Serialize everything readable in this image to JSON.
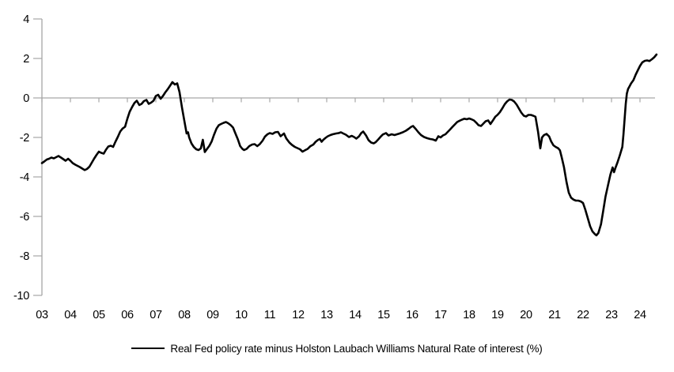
{
  "chart_data": {
    "type": "line",
    "title": "",
    "legend": "Real Fed policy rate minus Holston Laubach Williams Natural Rate of interest (%)",
    "legend_position": "bottom-center",
    "xlabel": "",
    "ylabel": "",
    "xlim": [
      2003,
      2024.56
    ],
    "ylim": [
      -10,
      4
    ],
    "grid": "zero-line-only",
    "axis_color": "#a6a6a6",
    "line_color": "#000000",
    "label_color": "#000000",
    "y_ticks": [
      4,
      2,
      0,
      -2,
      -4,
      -6,
      -8,
      -10
    ],
    "y_tick_labels": [
      "4",
      "2",
      "0",
      "-2",
      "-4",
      "-6",
      "-8",
      "-10"
    ],
    "x_tick_years": [
      2003,
      2004,
      2005,
      2006,
      2007,
      2008,
      2009,
      2010,
      2011,
      2012,
      2013,
      2014,
      2015,
      2016,
      2017,
      2018,
      2019,
      2020,
      2021,
      2022,
      2023,
      2024
    ],
    "x_tick_labels": [
      "03",
      "04",
      "05",
      "06",
      "07",
      "08",
      "09",
      "10",
      "11",
      "12",
      "13",
      "14",
      "15",
      "16",
      "17",
      "18",
      "19",
      "20",
      "21",
      "22",
      "23",
      "24"
    ],
    "series": [
      {
        "name": "Real Fed policy rate minus Holston Laubach Williams Natural Rate of interest (%)",
        "color": "#000000",
        "points": [
          [
            2003.0,
            -3.3
          ],
          [
            2003.08,
            -3.22
          ],
          [
            2003.17,
            -3.12
          ],
          [
            2003.25,
            -3.08
          ],
          [
            2003.33,
            -3.02
          ],
          [
            2003.42,
            -3.06
          ],
          [
            2003.5,
            -3.0
          ],
          [
            2003.58,
            -2.94
          ],
          [
            2003.67,
            -3.02
          ],
          [
            2003.75,
            -3.1
          ],
          [
            2003.83,
            -3.18
          ],
          [
            2003.92,
            -3.08
          ],
          [
            2004.0,
            -3.18
          ],
          [
            2004.08,
            -3.3
          ],
          [
            2004.17,
            -3.38
          ],
          [
            2004.25,
            -3.44
          ],
          [
            2004.33,
            -3.5
          ],
          [
            2004.42,
            -3.58
          ],
          [
            2004.5,
            -3.65
          ],
          [
            2004.58,
            -3.6
          ],
          [
            2004.67,
            -3.48
          ],
          [
            2004.75,
            -3.28
          ],
          [
            2004.83,
            -3.08
          ],
          [
            2004.92,
            -2.88
          ],
          [
            2005.0,
            -2.72
          ],
          [
            2005.08,
            -2.78
          ],
          [
            2005.17,
            -2.82
          ],
          [
            2005.25,
            -2.62
          ],
          [
            2005.33,
            -2.46
          ],
          [
            2005.42,
            -2.42
          ],
          [
            2005.5,
            -2.48
          ],
          [
            2005.58,
            -2.22
          ],
          [
            2005.67,
            -1.96
          ],
          [
            2005.75,
            -1.7
          ],
          [
            2005.83,
            -1.55
          ],
          [
            2005.92,
            -1.46
          ],
          [
            2006.0,
            -1.05
          ],
          [
            2006.08,
            -0.7
          ],
          [
            2006.17,
            -0.45
          ],
          [
            2006.25,
            -0.25
          ],
          [
            2006.33,
            -0.14
          ],
          [
            2006.42,
            -0.36
          ],
          [
            2006.5,
            -0.3
          ],
          [
            2006.58,
            -0.16
          ],
          [
            2006.67,
            -0.1
          ],
          [
            2006.75,
            -0.3
          ],
          [
            2006.83,
            -0.24
          ],
          [
            2006.92,
            -0.14
          ],
          [
            2007.0,
            0.1
          ],
          [
            2007.08,
            0.16
          ],
          [
            2007.17,
            -0.04
          ],
          [
            2007.25,
            0.1
          ],
          [
            2007.33,
            0.28
          ],
          [
            2007.42,
            0.45
          ],
          [
            2007.5,
            0.62
          ],
          [
            2007.58,
            0.8
          ],
          [
            2007.67,
            0.68
          ],
          [
            2007.75,
            0.74
          ],
          [
            2007.83,
            0.3
          ],
          [
            2007.92,
            -0.5
          ],
          [
            2008.0,
            -1.15
          ],
          [
            2008.08,
            -1.8
          ],
          [
            2008.13,
            -1.74
          ],
          [
            2008.17,
            -2.0
          ],
          [
            2008.25,
            -2.3
          ],
          [
            2008.33,
            -2.48
          ],
          [
            2008.42,
            -2.6
          ],
          [
            2008.5,
            -2.64
          ],
          [
            2008.58,
            -2.55
          ],
          [
            2008.65,
            -2.12
          ],
          [
            2008.72,
            -2.74
          ],
          [
            2008.79,
            -2.6
          ],
          [
            2008.88,
            -2.42
          ],
          [
            2008.96,
            -2.2
          ],
          [
            2009.04,
            -1.88
          ],
          [
            2009.13,
            -1.55
          ],
          [
            2009.21,
            -1.38
          ],
          [
            2009.29,
            -1.32
          ],
          [
            2009.38,
            -1.26
          ],
          [
            2009.46,
            -1.22
          ],
          [
            2009.54,
            -1.28
          ],
          [
            2009.63,
            -1.38
          ],
          [
            2009.71,
            -1.5
          ],
          [
            2009.79,
            -1.78
          ],
          [
            2009.88,
            -2.1
          ],
          [
            2009.96,
            -2.44
          ],
          [
            2010.04,
            -2.58
          ],
          [
            2010.1,
            -2.64
          ],
          [
            2010.19,
            -2.58
          ],
          [
            2010.28,
            -2.44
          ],
          [
            2010.38,
            -2.36
          ],
          [
            2010.47,
            -2.34
          ],
          [
            2010.56,
            -2.44
          ],
          [
            2010.65,
            -2.34
          ],
          [
            2010.75,
            -2.16
          ],
          [
            2010.83,
            -1.96
          ],
          [
            2010.92,
            -1.84
          ],
          [
            2011.0,
            -1.78
          ],
          [
            2011.1,
            -1.82
          ],
          [
            2011.19,
            -1.74
          ],
          [
            2011.29,
            -1.72
          ],
          [
            2011.38,
            -1.94
          ],
          [
            2011.5,
            -1.8
          ],
          [
            2011.58,
            -2.05
          ],
          [
            2011.69,
            -2.26
          ],
          [
            2011.78,
            -2.38
          ],
          [
            2011.88,
            -2.48
          ],
          [
            2011.97,
            -2.54
          ],
          [
            2012.06,
            -2.6
          ],
          [
            2012.15,
            -2.72
          ],
          [
            2012.25,
            -2.64
          ],
          [
            2012.33,
            -2.58
          ],
          [
            2012.42,
            -2.45
          ],
          [
            2012.53,
            -2.36
          ],
          [
            2012.61,
            -2.22
          ],
          [
            2012.7,
            -2.12
          ],
          [
            2012.76,
            -2.08
          ],
          [
            2012.82,
            -2.22
          ],
          [
            2012.88,
            -2.12
          ],
          [
            2012.96,
            -2.02
          ],
          [
            2013.04,
            -1.94
          ],
          [
            2013.13,
            -1.88
          ],
          [
            2013.21,
            -1.84
          ],
          [
            2013.33,
            -1.8
          ],
          [
            2013.42,
            -1.78
          ],
          [
            2013.5,
            -1.74
          ],
          [
            2013.58,
            -1.8
          ],
          [
            2013.67,
            -1.86
          ],
          [
            2013.78,
            -1.98
          ],
          [
            2013.88,
            -1.92
          ],
          [
            2013.96,
            -1.98
          ],
          [
            2014.04,
            -2.06
          ],
          [
            2014.13,
            -1.95
          ],
          [
            2014.21,
            -1.78
          ],
          [
            2014.28,
            -1.7
          ],
          [
            2014.38,
            -1.9
          ],
          [
            2014.47,
            -2.14
          ],
          [
            2014.56,
            -2.26
          ],
          [
            2014.65,
            -2.3
          ],
          [
            2014.72,
            -2.24
          ],
          [
            2014.81,
            -2.1
          ],
          [
            2014.9,
            -1.95
          ],
          [
            2014.97,
            -1.85
          ],
          [
            2015.08,
            -1.78
          ],
          [
            2015.17,
            -1.9
          ],
          [
            2015.28,
            -1.84
          ],
          [
            2015.38,
            -1.88
          ],
          [
            2015.47,
            -1.84
          ],
          [
            2015.56,
            -1.8
          ],
          [
            2015.67,
            -1.74
          ],
          [
            2015.78,
            -1.66
          ],
          [
            2015.88,
            -1.56
          ],
          [
            2015.97,
            -1.46
          ],
          [
            2016.03,
            -1.42
          ],
          [
            2016.13,
            -1.58
          ],
          [
            2016.22,
            -1.74
          ],
          [
            2016.31,
            -1.88
          ],
          [
            2016.42,
            -1.98
          ],
          [
            2016.53,
            -2.04
          ],
          [
            2016.63,
            -2.08
          ],
          [
            2016.72,
            -2.1
          ],
          [
            2016.83,
            -2.16
          ],
          [
            2016.92,
            -1.94
          ],
          [
            2017.0,
            -2.0
          ],
          [
            2017.08,
            -1.9
          ],
          [
            2017.17,
            -1.84
          ],
          [
            2017.25,
            -1.72
          ],
          [
            2017.33,
            -1.6
          ],
          [
            2017.42,
            -1.46
          ],
          [
            2017.5,
            -1.34
          ],
          [
            2017.58,
            -1.22
          ],
          [
            2017.67,
            -1.15
          ],
          [
            2017.75,
            -1.1
          ],
          [
            2017.83,
            -1.05
          ],
          [
            2017.92,
            -1.08
          ],
          [
            2018.0,
            -1.04
          ],
          [
            2018.08,
            -1.08
          ],
          [
            2018.17,
            -1.14
          ],
          [
            2018.25,
            -1.25
          ],
          [
            2018.33,
            -1.38
          ],
          [
            2018.42,
            -1.42
          ],
          [
            2018.5,
            -1.3
          ],
          [
            2018.58,
            -1.18
          ],
          [
            2018.67,
            -1.14
          ],
          [
            2018.75,
            -1.32
          ],
          [
            2018.83,
            -1.15
          ],
          [
            2018.92,
            -0.95
          ],
          [
            2019.0,
            -0.85
          ],
          [
            2019.08,
            -0.72
          ],
          [
            2019.17,
            -0.52
          ],
          [
            2019.25,
            -0.32
          ],
          [
            2019.33,
            -0.18
          ],
          [
            2019.42,
            -0.08
          ],
          [
            2019.5,
            -0.1
          ],
          [
            2019.58,
            -0.18
          ],
          [
            2019.67,
            -0.34
          ],
          [
            2019.75,
            -0.54
          ],
          [
            2019.83,
            -0.74
          ],
          [
            2019.92,
            -0.9
          ],
          [
            2020.0,
            -0.94
          ],
          [
            2020.08,
            -0.86
          ],
          [
            2020.17,
            -0.86
          ],
          [
            2020.25,
            -0.9
          ],
          [
            2020.33,
            -0.95
          ],
          [
            2020.42,
            -1.7
          ],
          [
            2020.5,
            -2.55
          ],
          [
            2020.56,
            -2.0
          ],
          [
            2020.63,
            -1.88
          ],
          [
            2020.72,
            -1.82
          ],
          [
            2020.81,
            -1.95
          ],
          [
            2020.88,
            -2.2
          ],
          [
            2020.96,
            -2.4
          ],
          [
            2021.04,
            -2.48
          ],
          [
            2021.13,
            -2.55
          ],
          [
            2021.19,
            -2.65
          ],
          [
            2021.25,
            -3.0
          ],
          [
            2021.33,
            -3.5
          ],
          [
            2021.42,
            -4.25
          ],
          [
            2021.5,
            -4.8
          ],
          [
            2021.58,
            -5.05
          ],
          [
            2021.67,
            -5.15
          ],
          [
            2021.75,
            -5.2
          ],
          [
            2021.83,
            -5.2
          ],
          [
            2021.92,
            -5.24
          ],
          [
            2022.0,
            -5.32
          ],
          [
            2022.08,
            -5.66
          ],
          [
            2022.17,
            -6.1
          ],
          [
            2022.25,
            -6.5
          ],
          [
            2022.33,
            -6.76
          ],
          [
            2022.42,
            -6.9
          ],
          [
            2022.47,
            -6.96
          ],
          [
            2022.54,
            -6.84
          ],
          [
            2022.63,
            -6.4
          ],
          [
            2022.71,
            -5.7
          ],
          [
            2022.79,
            -5.0
          ],
          [
            2022.88,
            -4.4
          ],
          [
            2022.96,
            -3.88
          ],
          [
            2023.04,
            -3.52
          ],
          [
            2023.09,
            -3.76
          ],
          [
            2023.14,
            -3.54
          ],
          [
            2023.21,
            -3.26
          ],
          [
            2023.29,
            -2.92
          ],
          [
            2023.33,
            -2.72
          ],
          [
            2023.38,
            -2.48
          ],
          [
            2023.42,
            -1.85
          ],
          [
            2023.46,
            -1.05
          ],
          [
            2023.5,
            -0.3
          ],
          [
            2023.54,
            0.22
          ],
          [
            2023.58,
            0.45
          ],
          [
            2023.63,
            0.58
          ],
          [
            2023.69,
            0.74
          ],
          [
            2023.77,
            0.9
          ],
          [
            2023.85,
            1.18
          ],
          [
            2023.93,
            1.42
          ],
          [
            2024.0,
            1.62
          ],
          [
            2024.08,
            1.8
          ],
          [
            2024.17,
            1.88
          ],
          [
            2024.25,
            1.9
          ],
          [
            2024.33,
            1.87
          ],
          [
            2024.42,
            1.96
          ],
          [
            2024.5,
            2.06
          ],
          [
            2024.58,
            2.2
          ]
        ]
      }
    ]
  }
}
